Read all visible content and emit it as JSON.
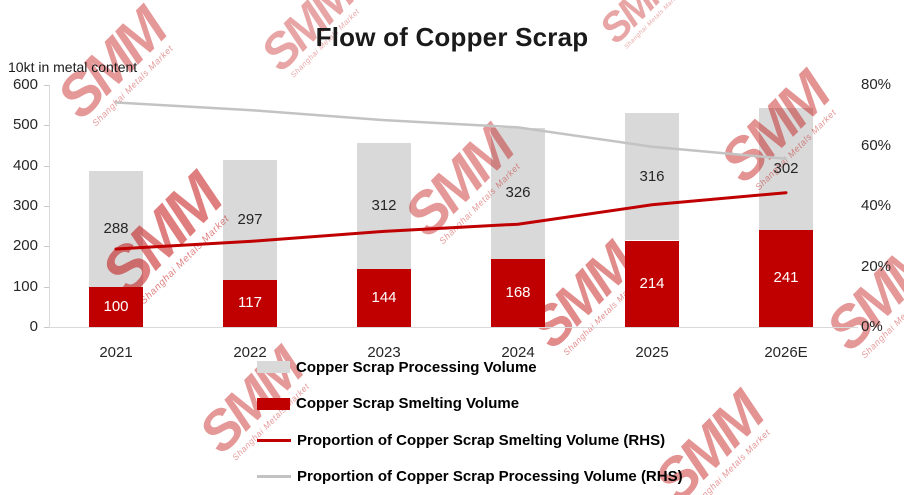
{
  "watermark": {
    "text": "SMM",
    "subtext": "Shanghai Metals Market",
    "color": "#c00000"
  },
  "colors": {
    "bar_processing": "#d9d9d9",
    "bar_smelting": "#c00000",
    "line_smelting": "#c00000",
    "line_processing": "#c3c3c3",
    "axis": "#d9d9d9",
    "text": "#262626"
  },
  "chart_data": {
    "type": "bar+line",
    "title": "Flow of Copper Scrap",
    "unit_label": "10kt in metal content",
    "categories": [
      "2021",
      "2022",
      "2023",
      "2024",
      "2025",
      "2026E"
    ],
    "series": [
      {
        "name": "Copper Scrap Smelting Volume",
        "type": "bar",
        "stack": "bottom",
        "color_key": "bar_smelting",
        "label_color": "#ffffff",
        "values": [
          100,
          117,
          144,
          168,
          214,
          241
        ]
      },
      {
        "name": "Copper Scrap Processing Volume",
        "type": "bar",
        "stack": "top",
        "color_key": "bar_processing",
        "label_color": "#262626",
        "values": [
          288,
          297,
          312,
          326,
          316,
          302
        ]
      },
      {
        "name": "Proportion of Copper Scrap Smelting Volume (RHS)",
        "type": "line",
        "axis": "right",
        "color_key": "line_smelting",
        "stroke_width": 3,
        "values_pct": [
          25.8,
          28.3,
          31.6,
          34.0,
          40.4,
          44.4
        ]
      },
      {
        "name": "Proportion of Copper Scrap Processing Volume (RHS)",
        "type": "line",
        "axis": "right",
        "color_key": "line_processing",
        "stroke_width": 2.5,
        "values_pct": [
          74.2,
          71.7,
          68.4,
          66.0,
          59.6,
          55.6
        ]
      }
    ],
    "left_axis": {
      "min": 0,
      "max": 600,
      "tick_values": [
        600,
        500,
        400,
        300,
        200,
        100,
        0
      ]
    },
    "right_axis": {
      "min": 0,
      "max": 80,
      "tick_labels": [
        "80%",
        "60%",
        "40%",
        "20%",
        "0%"
      ],
      "tick_values": [
        80,
        60,
        40,
        20,
        0
      ]
    },
    "legend_position": "bottom",
    "grid": false
  }
}
